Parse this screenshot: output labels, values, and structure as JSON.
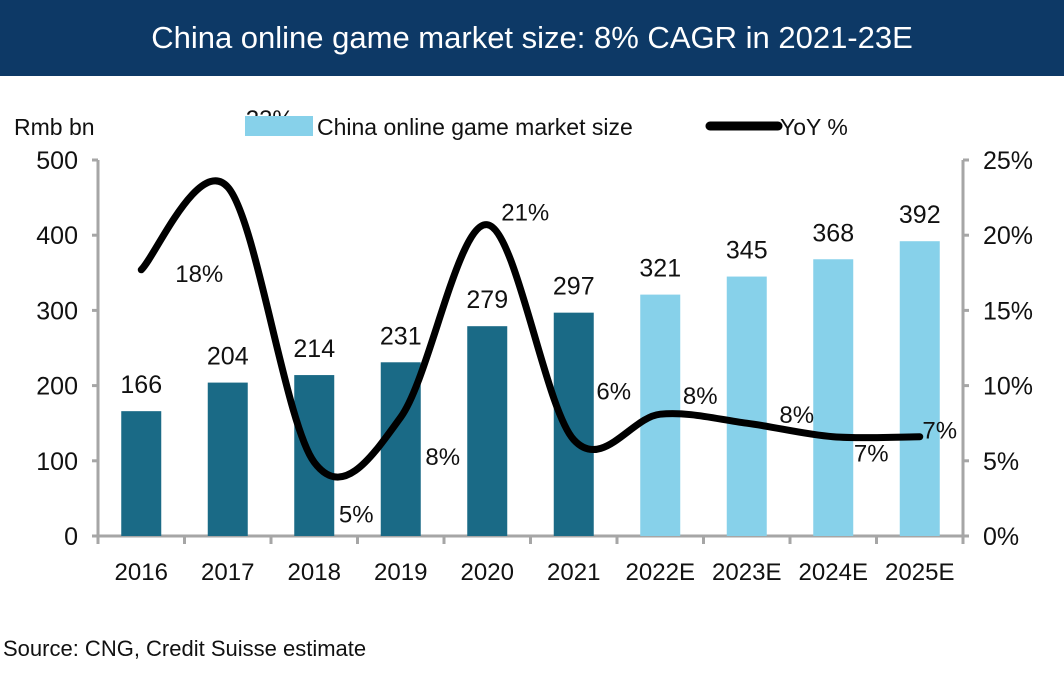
{
  "header": {
    "title": "China online game market size: 8% CAGR in 2021-23E"
  },
  "source": "Source: CNG, Credit Suisse estimate",
  "colors": {
    "header": "#0d3966",
    "actual_bar": "#1a6a86",
    "estimate_bar": "#87d1ea",
    "line": "#000000",
    "axis": "#a6a6a6"
  },
  "chart_data": {
    "type": "bar",
    "title": "China online game market size: 8% CAGR in 2021-23E",
    "ylabel": "Rmb bn",
    "categories": [
      "2016",
      "2017",
      "2018",
      "2019",
      "2020",
      "2021",
      "2022E",
      "2023E",
      "2024E",
      "2025E"
    ],
    "ylim": [
      0,
      500
    ],
    "yticks": [
      "0",
      "100",
      "200",
      "300",
      "400",
      "500"
    ],
    "y2lim": [
      0,
      25
    ],
    "y2ticks": [
      "0%",
      "5%",
      "10%",
      "15%",
      "20%",
      "25%"
    ],
    "legend": {
      "placement": "top",
      "entries": [
        "China online game market size",
        "YoY %"
      ]
    },
    "series": [
      {
        "name": "China online game market size",
        "type": "bar",
        "values": [
          166,
          204,
          214,
          231,
          279,
          297,
          321,
          345,
          368,
          392
        ],
        "labels": [
          "166",
          "204",
          "214",
          "231",
          "279",
          "297",
          "321",
          "345",
          "368",
          "392"
        ],
        "estimate": [
          false,
          false,
          false,
          false,
          false,
          false,
          true,
          true,
          true,
          true
        ]
      },
      {
        "name": "YoY %",
        "type": "line",
        "axis": "right",
        "values": [
          17.7,
          23.2,
          4.9,
          7.9,
          20.7,
          6.4,
          8.1,
          7.5,
          6.6,
          6.6
        ],
        "labels": [
          "18%",
          "23%",
          "5%",
          "8%",
          "21%",
          "6%",
          "8%",
          "8%",
          "7%",
          "7%"
        ]
      }
    ]
  }
}
